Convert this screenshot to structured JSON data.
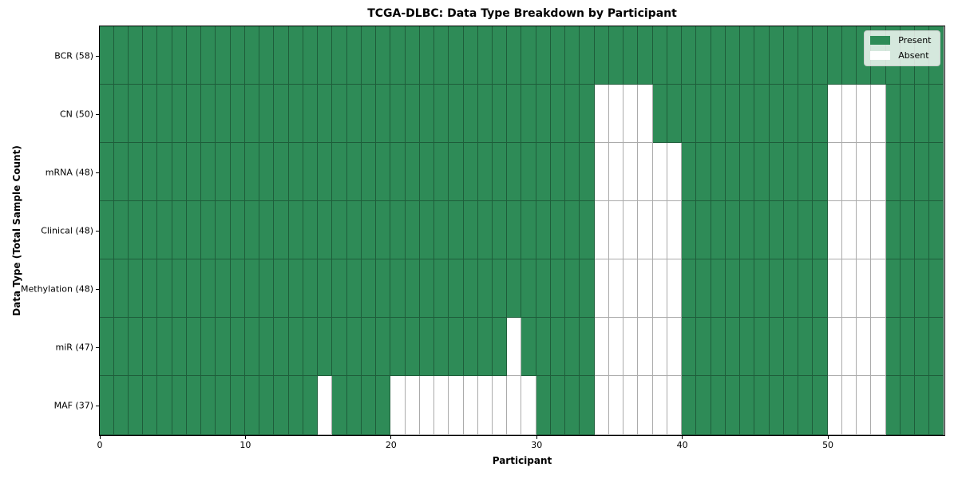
{
  "chart_data": {
    "type": "heatmap",
    "title": "TCGA-DLBC: Data Type Breakdown by Participant",
    "xlabel": "Participant",
    "ylabel": "Data Type (Total Sample Count)",
    "x_range": [
      0,
      58
    ],
    "x_tick_values": [
      0,
      10,
      20,
      30,
      40,
      50
    ],
    "n_participants": 58,
    "grid": "cell-edges",
    "legend_position": "upper right",
    "legend_entries": [
      "Present",
      "Absent"
    ],
    "colors": {
      "present": "#2e8b57",
      "absent": "#ffffff",
      "cell_edge": "rgba(0,0,0,0.33)",
      "legend_background": "rgba(255,255,255,0.8)",
      "legend_border": "#cccccc",
      "text": "#000000"
    },
    "rows": [
      {
        "label": "BCR (58)",
        "data_type": "BCR",
        "total_samples": 58,
        "absent_participants": []
      },
      {
        "label": "CN (50)",
        "data_type": "CN",
        "total_samples": 50,
        "absent_participants": [
          34,
          35,
          36,
          37,
          50,
          51,
          52,
          53
        ]
      },
      {
        "label": "mRNA (48)",
        "data_type": "mRNA",
        "total_samples": 48,
        "absent_participants": [
          34,
          35,
          36,
          37,
          38,
          39,
          50,
          51,
          52,
          53
        ]
      },
      {
        "label": "Clinical (48)",
        "data_type": "Clinical",
        "total_samples": 48,
        "absent_participants": [
          34,
          35,
          36,
          37,
          38,
          39,
          50,
          51,
          52,
          53
        ]
      },
      {
        "label": "Methylation (48)",
        "data_type": "Methylation",
        "total_samples": 48,
        "absent_participants": [
          34,
          35,
          36,
          37,
          38,
          39,
          50,
          51,
          52,
          53
        ]
      },
      {
        "label": "miR (47)",
        "data_type": "miR",
        "total_samples": 47,
        "absent_participants": [
          28,
          34,
          35,
          36,
          37,
          38,
          39,
          50,
          51,
          52,
          53
        ]
      },
      {
        "label": "MAF (37)",
        "data_type": "MAF",
        "total_samples": 37,
        "absent_participants": [
          15,
          20,
          21,
          22,
          23,
          24,
          25,
          26,
          27,
          28,
          29,
          34,
          35,
          36,
          37,
          38,
          39,
          50,
          51,
          52,
          53
        ]
      }
    ]
  }
}
